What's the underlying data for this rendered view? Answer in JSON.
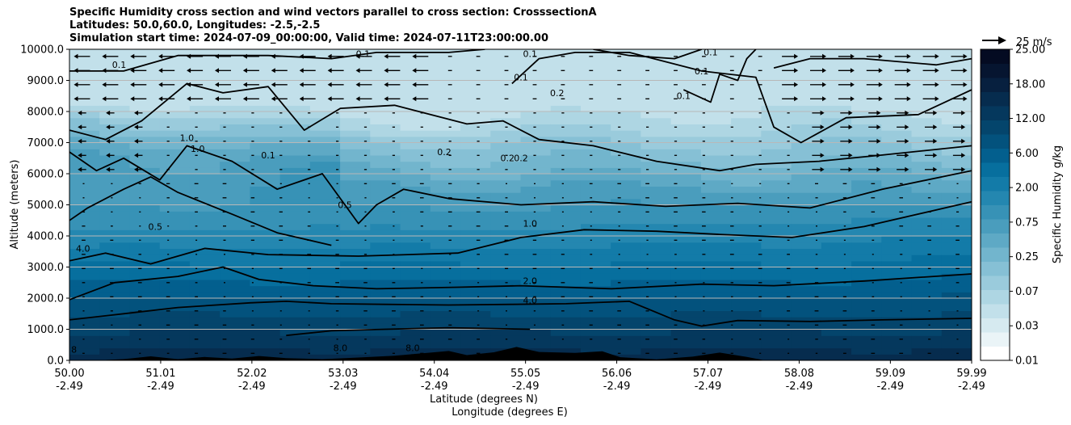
{
  "chart_data": {
    "type": "contour-cross-section",
    "title_lines": [
      "Specific Humidity cross section and wind vectors parallel to cross section: CrosssectionA",
      "Latitudes: 50.0,60.0, Longitudes: -2.5,-2.5",
      "Simulation start time: 2024-07-09_00:00:00, Valid time: 2024-07-11T23:00:00.00"
    ],
    "ylabel": "Altitude (meters)",
    "xlabel_lat": "Latitude (degrees N)",
    "xlabel_lon": "Longitude (degrees E)",
    "ylim": [
      0,
      10000
    ],
    "y_ticks": [
      "0.0",
      "1000.0",
      "2000.0",
      "3000.0",
      "4000.0",
      "5000.0",
      "6000.0",
      "7000.0",
      "8000.0",
      "9000.0",
      "10000.0"
    ],
    "x_ticks": [
      {
        "lat": "50.00",
        "lon": "-2.49"
      },
      {
        "lat": "51.01",
        "lon": "-2.49"
      },
      {
        "lat": "52.02",
        "lon": "-2.49"
      },
      {
        "lat": "53.03",
        "lon": "-2.49"
      },
      {
        "lat": "54.04",
        "lon": "-2.49"
      },
      {
        "lat": "55.05",
        "lon": "-2.49"
      },
      {
        "lat": "56.06",
        "lon": "-2.49"
      },
      {
        "lat": "57.07",
        "lon": "-2.49"
      },
      {
        "lat": "58.08",
        "lon": "-2.49"
      },
      {
        "lat": "59.09",
        "lon": "-2.49"
      },
      {
        "lat": "59.99",
        "lon": "-2.49"
      }
    ],
    "colorbar": {
      "label": "Specific Humidity g/kg",
      "ticks": [
        "0.01",
        "0.03",
        "0.07",
        "0.25",
        "0.75",
        "2.00",
        "6.00",
        "12.00",
        "18.00",
        "25.00"
      ]
    },
    "quiver_key": "25 m/s",
    "contour_levels": [
      "0.1",
      "0.2",
      "0.5",
      "1.0",
      "2.0",
      "4.0",
      "8.0"
    ],
    "contour_labels": [
      {
        "text": "0.1",
        "x": 50.55,
        "y": 9400
      },
      {
        "text": "0.1",
        "x": 51.15,
        "y": 10000
      },
      {
        "text": "0.1",
        "x": 53.25,
        "y": 9750
      },
      {
        "text": "0.1",
        "x": 54.0,
        "y": 10000
      },
      {
        "text": "0.1",
        "x": 55.0,
        "y": 9000
      },
      {
        "text": "0.1",
        "x": 55.1,
        "y": 9750
      },
      {
        "text": "0.2",
        "x": 55.4,
        "y": 8500
      },
      {
        "text": "0.1",
        "x": 56.4,
        "y": 10000
      },
      {
        "text": "0.1",
        "x": 57.0,
        "y": 9200
      },
      {
        "text": "0.1",
        "x": 56.8,
        "y": 8400
      },
      {
        "text": "0.1",
        "x": 57.1,
        "y": 9800
      },
      {
        "text": "1.0",
        "x": 51.3,
        "y": 7050
      },
      {
        "text": "1.0",
        "x": 51.42,
        "y": 6700
      },
      {
        "text": "0.1",
        "x": 52.2,
        "y": 6500
      },
      {
        "text": "0.2",
        "x": 54.15,
        "y": 6600
      },
      {
        "text": "0.2",
        "x": 54.85,
        "y": 6400
      },
      {
        "text": "0.2",
        "x": 55.0,
        "y": 6400
      },
      {
        "text": "0.5",
        "x": 53.05,
        "y": 4900
      },
      {
        "text": "0.5",
        "x": 50.95,
        "y": 4200
      },
      {
        "text": "4.0",
        "x": 50.15,
        "y": 3500
      },
      {
        "text": "1.0",
        "x": 55.1,
        "y": 4300
      },
      {
        "text": "2.0",
        "x": 55.1,
        "y": 2450
      },
      {
        "text": "4.0",
        "x": 55.1,
        "y": 1830
      },
      {
        "text": "8.0",
        "x": 53.0,
        "y": 300
      },
      {
        "text": "8.0",
        "x": 53.8,
        "y": 300
      },
      {
        "text": "8",
        "x": 50.05,
        "y": 250
      }
    ]
  },
  "colors": {
    "palette": [
      "#ffffff",
      "#eaf4f7",
      "#d6eaf0",
      "#c2e0ea",
      "#aed6e3",
      "#9acbdc",
      "#86c0d5",
      "#72b5cd",
      "#5ea9c5",
      "#4a9dbd",
      "#3792b6",
      "#2487b0",
      "#137ba8",
      "#076f9e",
      "#035f8e",
      "#03527d",
      "#04456c",
      "#05385d",
      "#062c4e",
      "#07203f",
      "#061530",
      "#040b22"
    ]
  }
}
